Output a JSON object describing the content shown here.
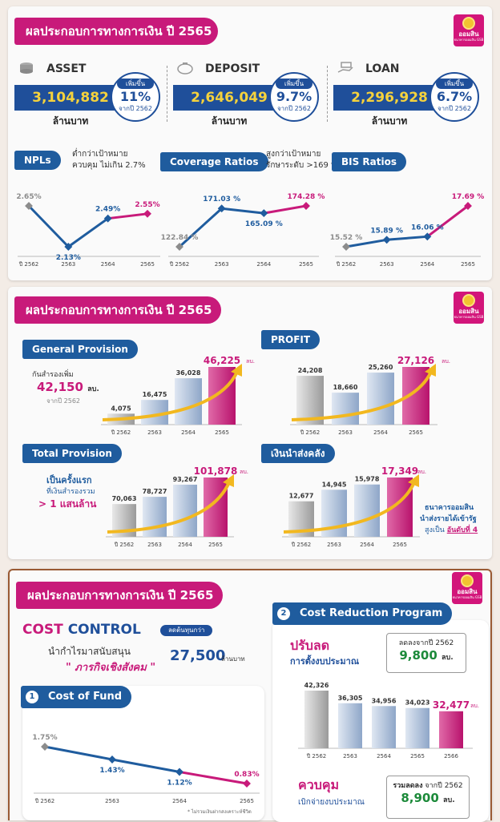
{
  "logo": {
    "text": "ออมสิน",
    "sub": "ธนาคารออมสิน GSB"
  },
  "panel1": {
    "title": "ผลประกอบการทางการเงิน ปี 2565",
    "kpis": [
      {
        "name": "ASSET",
        "value": "3,104,882",
        "unit": "ล้านบาท",
        "badge": "เพิ่มขึ้น",
        "pct": "11%",
        "from": "จากปี 2562",
        "icon": "coins-icon"
      },
      {
        "name": "DEPOSIT",
        "value": "2,646,049",
        "unit": "ล้านบาท",
        "badge": "เพิ่มขึ้น",
        "pct": "9.7%",
        "from": "จากปี 2562",
        "icon": "piggy-bank-icon"
      },
      {
        "name": "LOAN",
        "value": "2,296,928",
        "unit": "ล้านบาท",
        "badge": "เพิ่มขึ้น",
        "pct": "6.7%",
        "from": "จากปี 2562",
        "icon": "hand-money-icon"
      }
    ],
    "npl": {
      "label": "NPLs",
      "note1": "ต่ำกว่าเป้าหมาย",
      "note2": "ควบคุม ไม่เกิน 2.7%"
    },
    "coverage": {
      "label": "Coverage Ratios",
      "note1": "สูงกว่าเป้าหมาย",
      "note2": "รักษาระดับ >169 %"
    },
    "bis": {
      "label": "BIS Ratios"
    }
  },
  "panel2": {
    "title": "ผลประกอบการทางการเงิน ปี 2565",
    "gp": {
      "label": "General Provision",
      "box1": "กันสำรองเพิ่ม",
      "box2": "42,150",
      "box2u": "ลบ.",
      "box3": "จากปี 2562"
    },
    "profit": {
      "label": "PROFIT"
    },
    "tp": {
      "label": "Total Provision",
      "n1": "เป็นครั้งแรก",
      "n2": "ที่เงินสำรองรวม",
      "n3": "> 1 แสนล้าน"
    },
    "remit": {
      "label": "เงินนำส่งคลัง",
      "n1": "ธนาคารออมสิน",
      "n2": "นำส่งรายได้เข้ารัฐ",
      "n3a": "สูงเป็น",
      "n3b": "อันดับที่ 4"
    }
  },
  "panel3": {
    "title": "ผลประกอบการทางการเงิน ปี 2565",
    "cc_a": "COST",
    "cc_b": "CONTROL",
    "cc_note": "ลดต้นทุนกว่า",
    "cc_l1": "นำกำไรมาสนับสนุน",
    "cc_l2": "\" ภารกิจเชิงสังคม \"",
    "cc_value": "27,500",
    "cc_unit": "ล้านบาท",
    "cof_num": "1",
    "cof_label": "Cost of Fund",
    "cof_foot": "* ไม่รวมเงินฝากสงเคราะห์ชีวิต",
    "crp_num": "2",
    "crp_label": "Cost Reduction Program",
    "budget_t1": "ปรับลด",
    "budget_t2": "การตั้งงบประมาณ",
    "budget_box1": "ลดลงจากปี 2562",
    "budget_box2": "9,800",
    "budget_box2u": "ลบ.",
    "ctrl_t1": "ควบคุม",
    "ctrl_t2": "เบิกจ่ายงบประมาณ",
    "ctrl_box1a": "รวมลดลง",
    "ctrl_box1b": "จากปี 2562",
    "ctrl_box2": "8,900",
    "ctrl_box2u": "ลบ."
  },
  "chart_data": [
    {
      "id": "npl",
      "type": "line",
      "title": "NPLs",
      "x": [
        "ปี 2562",
        "2563",
        "2564",
        "2565"
      ],
      "y": [
        2.65,
        2.13,
        2.49,
        2.55
      ],
      "labels": [
        "2.65%",
        "2.13%",
        "2.49%",
        "2.55%"
      ],
      "colors": [
        "#8c8c8c",
        "#1f5c9e",
        "#1f5c9e",
        "#c81a7a"
      ]
    },
    {
      "id": "coverage",
      "type": "line",
      "title": "Coverage Ratios",
      "x": [
        "ปี 2562",
        "2563",
        "2564",
        "2565"
      ],
      "y": [
        122.84,
        171.03,
        165.09,
        174.28
      ],
      "labels": [
        "122.84 %",
        "171.03 %",
        "165.09 %",
        "174.28 %"
      ],
      "colors": [
        "#8c8c8c",
        "#1f5c9e",
        "#1f5c9e",
        "#c81a7a"
      ]
    },
    {
      "id": "bis",
      "type": "line",
      "title": "BIS Ratios",
      "x": [
        "ปี 2562",
        "2563",
        "2564",
        "2565"
      ],
      "y": [
        15.52,
        15.89,
        16.06,
        17.69
      ],
      "labels": [
        "15.52 %",
        "15.89 %",
        "16.06 %",
        "17.69 %"
      ],
      "colors": [
        "#8c8c8c",
        "#1f5c9e",
        "#1f5c9e",
        "#c81a7a"
      ]
    },
    {
      "id": "gp",
      "type": "bar",
      "title": "General Provision",
      "categories": [
        "ปี 2562",
        "2563",
        "2564",
        "2565"
      ],
      "values": [
        4075,
        16475,
        36028,
        46225
      ],
      "labels": [
        "4,075",
        "16,475",
        "36,028",
        "46,225"
      ],
      "unit": "ลบ."
    },
    {
      "id": "profit",
      "type": "bar",
      "title": "PROFIT",
      "categories": [
        "ปี 2562",
        "2563",
        "2564",
        "2565"
      ],
      "values": [
        24208,
        18660,
        25260,
        27126
      ],
      "labels": [
        "24,208",
        "18,660",
        "25,260",
        "27,126"
      ],
      "unit": "ลบ."
    },
    {
      "id": "tp",
      "type": "bar",
      "title": "Total Provision",
      "categories": [
        "ปี 2562",
        "2563",
        "2564",
        "2565"
      ],
      "values": [
        70063,
        78727,
        93267,
        101878
      ],
      "labels": [
        "70,063",
        "78,727",
        "93,267",
        "101,878"
      ],
      "unit": "ลบ."
    },
    {
      "id": "remit",
      "type": "bar",
      "title": "เงินนำส่งคลัง",
      "categories": [
        "ปี 2562",
        "2563",
        "2564",
        "2565"
      ],
      "values": [
        12677,
        14945,
        15978,
        17349
      ],
      "labels": [
        "12,677",
        "14,945",
        "15,978",
        "17,349"
      ],
      "unit": "ลบ."
    },
    {
      "id": "cof",
      "type": "line",
      "title": "Cost of Fund",
      "x": [
        "ปี 2562",
        "2563",
        "2564",
        "2565"
      ],
      "y": [
        1.75,
        1.43,
        1.12,
        0.83
      ],
      "labels": [
        "1.75%",
        "1.43%",
        "1.12%",
        "0.83%"
      ],
      "colors": [
        "#8c8c8c",
        "#1f5c9e",
        "#1f5c9e",
        "#c81a7a"
      ]
    },
    {
      "id": "budget",
      "type": "bar",
      "title": "ปรับลด การตั้งงบประมาณ",
      "categories": [
        "ปี 2562",
        "2563",
        "2564",
        "2565",
        "2566"
      ],
      "values": [
        42326,
        36305,
        34956,
        34023,
        32477
      ],
      "labels": [
        "42,326",
        "36,305",
        "34,956",
        "34,023",
        "32,477"
      ],
      "unit": "ลบ."
    }
  ]
}
